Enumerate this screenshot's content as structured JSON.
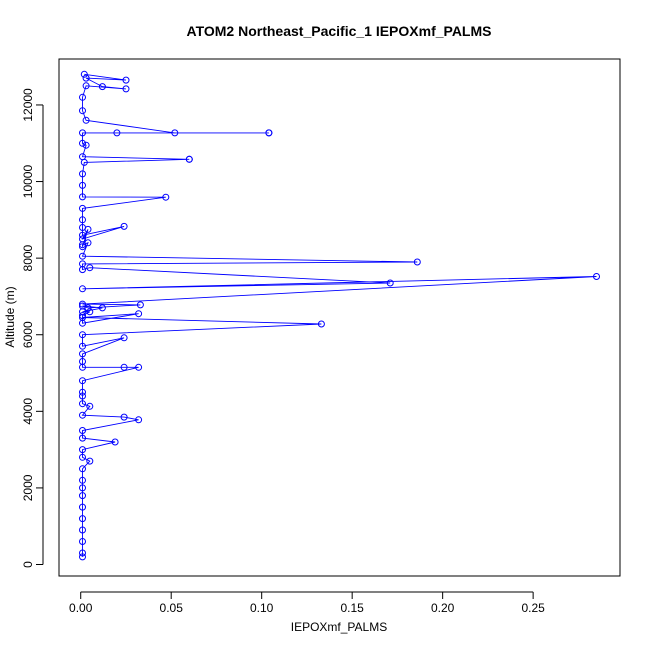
{
  "chart_data": {
    "type": "scatter",
    "title": "ATOM2 Northeast_Pacific_1 IEPOXmf_PALMS",
    "xlabel": "IEPOXmf_PALMS",
    "ylabel": "Altitude (m)",
    "xlim": [
      -0.012,
      0.298
    ],
    "ylim": [
      -300,
      13200
    ],
    "x_ticks": [
      0.0,
      0.05,
      0.1,
      0.15,
      0.2,
      0.25
    ],
    "x_tick_labels": [
      "0.00",
      "0.05",
      "0.10",
      "0.15",
      "0.20",
      "0.25"
    ],
    "y_ticks": [
      0,
      2000,
      4000,
      6000,
      8000,
      10000,
      12000
    ],
    "y_tick_labels": [
      "0",
      "2000",
      "4000",
      "6000",
      "8000",
      "10000",
      "12000"
    ],
    "grid": false,
    "legend": "none",
    "connect_points": true,
    "colors": {
      "series": "#0000ff",
      "axis": "#000000"
    },
    "series": [
      {
        "x": [
          0.002,
          0.025,
          0.003,
          0.012,
          0.025,
          0.003,
          0.001,
          0.001,
          0.003,
          0.052,
          0.104,
          0.104,
          0.02,
          0.001,
          0.001,
          0.003,
          0.001,
          0.06,
          0.06,
          0.002,
          0.001,
          0.001,
          0.001,
          0.047,
          0.001,
          0.001,
          0.001,
          0.001,
          0.024,
          0.001,
          0.004,
          0.001,
          0.001,
          0.004,
          0.001,
          0.186,
          0.001,
          0.001,
          0.005,
          0.171,
          0.001,
          0.285,
          0.001,
          0.033,
          0.004,
          0.001,
          0.012,
          0.001,
          0.005,
          0.001,
          0.001,
          0.032,
          0.001,
          0.133,
          0.001,
          0.001,
          0.024,
          0.001,
          0.001,
          0.001,
          0.024,
          0.032,
          0.001,
          0.001,
          0.001,
          0.001,
          0.005,
          0.001,
          0.024,
          0.032,
          0.001,
          0.001,
          0.019,
          0.001,
          0.001,
          0.005,
          0.001,
          0.001,
          0.001,
          0.001,
          0.001,
          0.001,
          0.001,
          0.001,
          0.001,
          0.001
        ],
        "y": [
          12800,
          12650,
          12700,
          12480,
          12420,
          12500,
          12200,
          11850,
          11600,
          11270,
          11270,
          11270,
          11270,
          11270,
          11000,
          10950,
          10650,
          10580,
          10580,
          10500,
          10200,
          9900,
          9600,
          9590,
          9300,
          9000,
          8800,
          8600,
          8830,
          8500,
          8750,
          8300,
          8350,
          8400,
          8050,
          7900,
          7850,
          7700,
          7750,
          7350,
          7200,
          7520,
          6800,
          6780,
          6700,
          6750,
          6700,
          6600,
          6600,
          6500,
          6300,
          6550,
          6450,
          6280,
          6000,
          5700,
          5920,
          5500,
          5300,
          5150,
          5150,
          5150,
          4800,
          4500,
          4400,
          4200,
          4130,
          3900,
          3850,
          3780,
          3500,
          3300,
          3200,
          3000,
          2800,
          2700,
          2500,
          2200,
          2000,
          1800,
          1500,
          1200,
          900,
          600,
          300,
          200
        ]
      }
    ]
  }
}
